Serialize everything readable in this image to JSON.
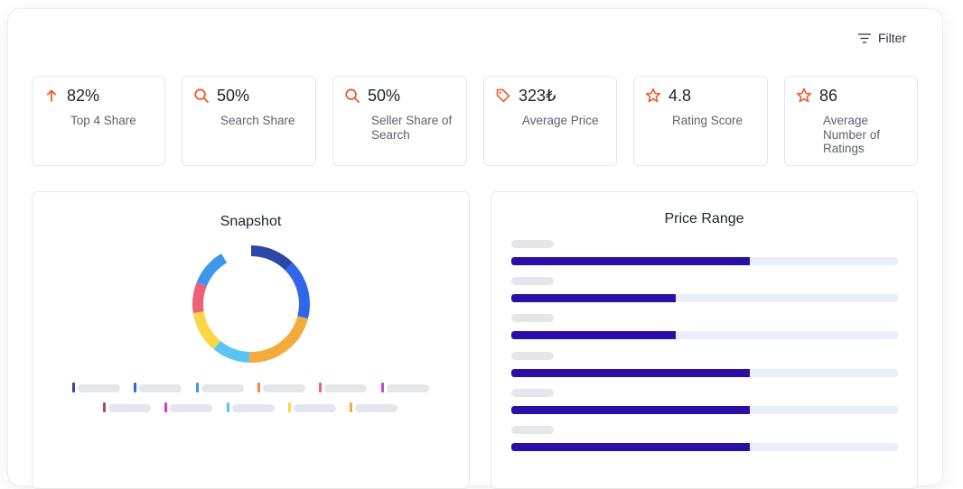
{
  "toolbar": {
    "filter_label": "Filter",
    "filter_icon": "filter-lines-icon"
  },
  "kpis": [
    {
      "value": "82%",
      "label": "Top 4 Share",
      "icon": "arrow-up-icon",
      "icon_color": "#f1592a"
    },
    {
      "value": "50%",
      "label": "Search Share",
      "icon": "search-icon",
      "icon_color": "#f1592a"
    },
    {
      "value": "50%",
      "label": "Seller Share of Search",
      "icon": "search-icon",
      "icon_color": "#f1592a"
    },
    {
      "value": "323₺",
      "label": "Average Price",
      "icon": "price-tag-icon",
      "icon_color": "#f1592a"
    },
    {
      "value": "4.8",
      "label": "Rating Score",
      "icon": "star-icon",
      "icon_color": "#f1592a"
    },
    {
      "value": "86",
      "label": "Average Number of Ratings",
      "icon": "star-icon",
      "icon_color": "#f1592a"
    }
  ],
  "snapshot": {
    "title": "Snapshot",
    "segments": [
      {
        "share": 0.125,
        "color": "#2d47a8"
      },
      {
        "share": 0.165,
        "color": "#2f66eb"
      },
      {
        "share": 0.215,
        "color": "#f3ac3c"
      },
      {
        "share": 0.105,
        "color": "#5bc4f5"
      },
      {
        "share": 0.115,
        "color": "#f8d645"
      },
      {
        "share": 0.085,
        "color": "#ec6078"
      },
      {
        "share": 0.105,
        "color": "#3e97ec"
      }
    ],
    "legend_colors": [
      "#2d47a8",
      "#2f66eb",
      "#3e97ec",
      "#f08a3c",
      "#ec6078",
      "#c04ad8",
      "#b63f73",
      "#ee2ed8",
      "#5bc4f5",
      "#f8d645",
      "#f3ac3c"
    ]
  },
  "price_range": {
    "title": "Price Range",
    "accent": "#2a0ea6",
    "track_color": "#e9effa",
    "bars": [
      0.617,
      0.425,
      0.425,
      0.617,
      0.617,
      0.617
    ]
  }
}
